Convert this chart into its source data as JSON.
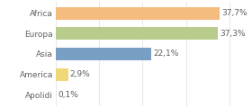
{
  "categories": [
    "Africa",
    "Europa",
    "Asia",
    "America",
    "Apolidi"
  ],
  "values": [
    37.7,
    37.3,
    22.1,
    2.9,
    0.1
  ],
  "labels": [
    "37,7%",
    "37,3%",
    "22,1%",
    "2,9%",
    "0,1%"
  ],
  "colors": [
    "#f5bc80",
    "#b8cc8c",
    "#7a9fc4",
    "#f0d878",
    "#f0d878"
  ],
  "background": "#ffffff",
  "xlim_max": 44,
  "bar_height": 0.62,
  "label_fontsize": 6.5,
  "tick_fontsize": 6.5,
  "grid_color": "#dddddd",
  "grid_x": [
    0,
    10,
    20,
    30,
    40
  ],
  "text_color": "#606060"
}
